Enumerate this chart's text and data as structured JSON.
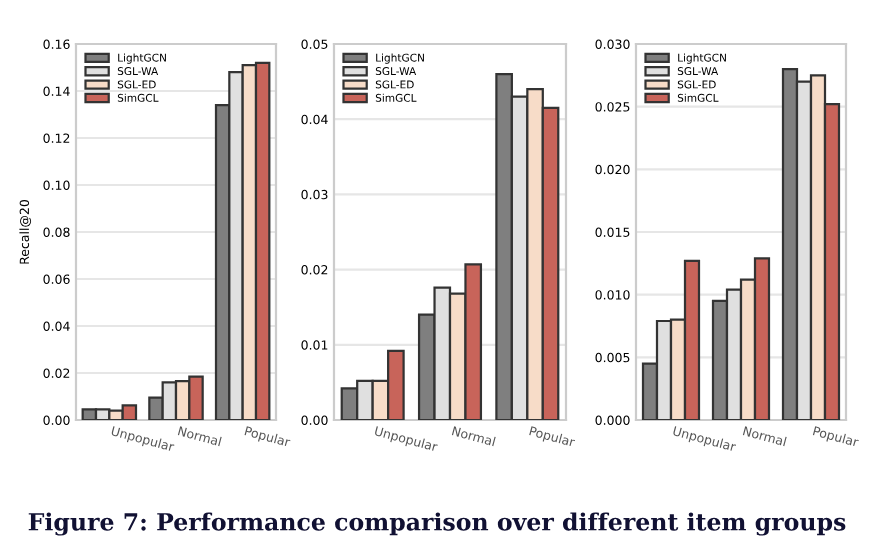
{
  "chart_data": [
    {
      "type": "bar",
      "ylabel": "Recall@20",
      "categories": [
        "Unpopular",
        "Normal",
        "Popular"
      ],
      "ylim": [
        0,
        0.16
      ],
      "yticks": [
        {
          "value": 0,
          "label": "0.00"
        },
        {
          "value": 0.02,
          "label": "0.02"
        },
        {
          "value": 0.04,
          "label": "0.04"
        },
        {
          "value": 0.06,
          "label": "0.06"
        },
        {
          "value": 0.08,
          "label": "0.08"
        },
        {
          "value": 0.1,
          "label": "0.10"
        },
        {
          "value": 0.12,
          "label": "0.12"
        },
        {
          "value": 0.14,
          "label": "0.14"
        },
        {
          "value": 0.16,
          "label": "0.16"
        }
      ],
      "grid": "y",
      "legend": "top left",
      "annotations": [
        "Figure 7: Performance comparison over different item groups"
      ],
      "series": [
        {
          "name": "LightGCN",
          "color": "#7f7f7f",
          "values": [
            0.0045,
            0.0095,
            0.134
          ]
        },
        {
          "name": "SGL-WA",
          "color": "#e0e0e0",
          "values": [
            0.0045,
            0.016,
            0.148
          ]
        },
        {
          "name": "SGL-ED",
          "color": "#f7dcc8",
          "values": [
            0.004,
            0.0165,
            0.151
          ]
        },
        {
          "name": "SimGCL",
          "color": "#c8645a",
          "values": [
            0.0062,
            0.0185,
            0.152
          ]
        }
      ]
    },
    {
      "type": "bar",
      "categories": [
        "Unpopular",
        "Normal",
        "Popular"
      ],
      "ylim": [
        0,
        0.05
      ],
      "yticks": [
        {
          "value": 0,
          "label": "0.00"
        },
        {
          "value": 0.01,
          "label": "0.01"
        },
        {
          "value": 0.02,
          "label": "0.02"
        },
        {
          "value": 0.03,
          "label": "0.03"
        },
        {
          "value": 0.04,
          "label": "0.04"
        },
        {
          "value": 0.05,
          "label": "0.05"
        }
      ],
      "grid": "y",
      "legend": "top left",
      "series": [
        {
          "name": "LightGCN",
          "color": "#7f7f7f",
          "values": [
            0.0042,
            0.014,
            0.046
          ]
        },
        {
          "name": "SGL-WA",
          "color": "#e0e0e0",
          "values": [
            0.0052,
            0.0176,
            0.043
          ]
        },
        {
          "name": "SGL-ED",
          "color": "#f7dcc8",
          "values": [
            0.0052,
            0.0168,
            0.044
          ]
        },
        {
          "name": "SimGCL",
          "color": "#c8645a",
          "values": [
            0.0092,
            0.0207,
            0.0415
          ]
        }
      ]
    },
    {
      "type": "bar",
      "categories": [
        "Unpopular",
        "Normal",
        "Popular"
      ],
      "ylim": [
        0,
        0.03
      ],
      "yticks": [
        {
          "value": 0,
          "label": "0.000"
        },
        {
          "value": 0.005,
          "label": "0.005"
        },
        {
          "value": 0.01,
          "label": "0.010"
        },
        {
          "value": 0.015,
          "label": "0.015"
        },
        {
          "value": 0.02,
          "label": "0.020"
        },
        {
          "value": 0.025,
          "label": "0.025"
        },
        {
          "value": 0.03,
          "label": "0.030"
        }
      ],
      "grid": "y",
      "legend": "top left",
      "series": [
        {
          "name": "LightGCN",
          "color": "#7f7f7f",
          "values": [
            0.0045,
            0.0095,
            0.028
          ]
        },
        {
          "name": "SGL-WA",
          "color": "#e0e0e0",
          "values": [
            0.0079,
            0.0104,
            0.027
          ]
        },
        {
          "name": "SGL-ED",
          "color": "#f7dcc8",
          "values": [
            0.008,
            0.0112,
            0.0275
          ]
        },
        {
          "name": "SimGCL",
          "color": "#c8645a",
          "values": [
            0.0127,
            0.0129,
            0.0252
          ]
        }
      ]
    }
  ]
}
